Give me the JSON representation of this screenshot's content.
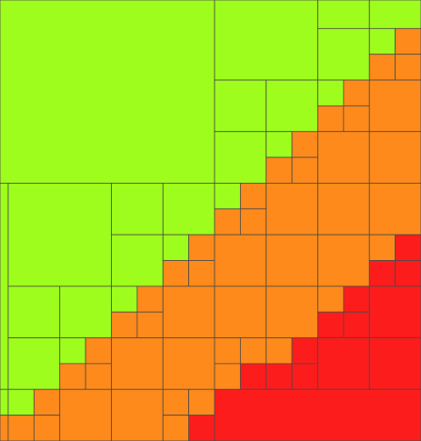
{
  "palette": {
    "g": "#9efd1c",
    "o": "#fd8a1b",
    "r": "#fd1c1c"
  }
}
